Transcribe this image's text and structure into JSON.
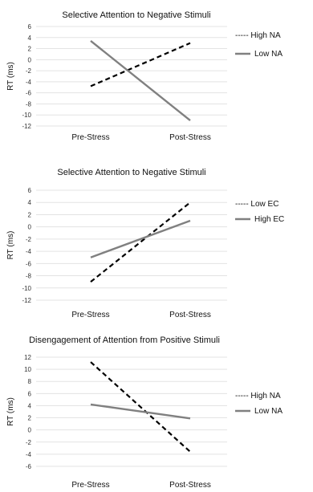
{
  "chart_data": [
    {
      "type": "line",
      "title": "Selective Attention to Negative Stimuli",
      "ylabel": "RT (ms)",
      "categories": [
        "Pre-Stress",
        "Post-Stress"
      ],
      "yticks": [
        "6",
        "4",
        "2",
        "0",
        "-2",
        "-4",
        "-6",
        "-8",
        "-10",
        "-12"
      ],
      "ylim": [
        -12,
        6
      ],
      "grid": true,
      "legend_position": "right",
      "series": [
        {
          "name": "High NA",
          "legend_label": "----- High NA",
          "style": "dashed",
          "color": "#000000",
          "values": [
            -4.8,
            3.0
          ]
        },
        {
          "name": "Low NA",
          "legend_label": "Low NA",
          "style": "solid",
          "color": "#808080",
          "values": [
            3.4,
            -11.0
          ]
        }
      ]
    },
    {
      "type": "line",
      "title": "Selective Attention to Negative Stimuli",
      "ylabel": "RT (ms)",
      "categories": [
        "Pre-Stress",
        "Post-Stress"
      ],
      "yticks": [
        "6",
        "4",
        "2",
        "0",
        "-2",
        "-4",
        "-6",
        "-8",
        "-10",
        "-12"
      ],
      "ylim": [
        -12,
        6
      ],
      "grid": true,
      "legend_position": "right",
      "series": [
        {
          "name": "Low EC",
          "legend_label": "----- Low EC",
          "style": "dashed",
          "color": "#000000",
          "values": [
            -9.0,
            4.0
          ]
        },
        {
          "name": "High EC",
          "legend_label": "High EC",
          "style": "solid",
          "color": "#808080",
          "values": [
            -5.0,
            1.0
          ]
        }
      ]
    },
    {
      "type": "line",
      "title": "Disengagement of Attention from Positive Stimuli",
      "ylabel": "RT (ms)",
      "categories": [
        "Pre-Stress",
        "Post-Stress"
      ],
      "yticks": [
        "12",
        "10",
        "8",
        "6",
        "4",
        "2",
        "0",
        "-2",
        "-4",
        "-6"
      ],
      "ylim": [
        -6,
        12
      ],
      "grid": true,
      "legend_position": "right",
      "series": [
        {
          "name": "High NA",
          "legend_label": "----- High NA",
          "style": "dashed",
          "color": "#000000",
          "values": [
            11.2,
            -3.6
          ]
        },
        {
          "name": "Low NA",
          "legend_label": "Low NA",
          "style": "solid",
          "color": "#808080",
          "values": [
            4.2,
            1.9
          ]
        }
      ]
    }
  ]
}
